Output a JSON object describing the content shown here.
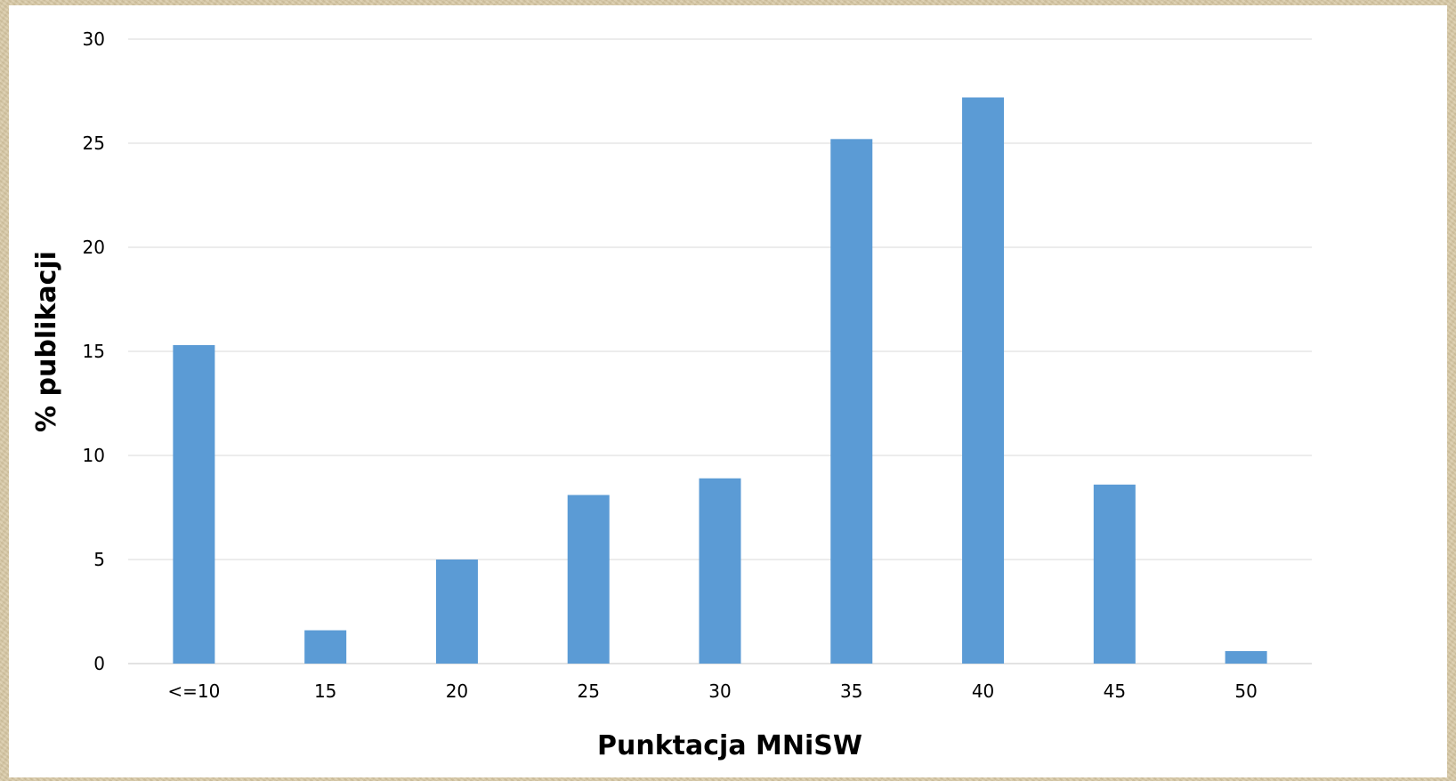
{
  "chart_data": {
    "type": "bar",
    "categories": [
      "<=10",
      "15",
      "20",
      "25",
      "30",
      "35",
      "40",
      "45",
      "50"
    ],
    "values": [
      15.3,
      1.6,
      5.0,
      8.1,
      8.9,
      25.2,
      27.2,
      8.6,
      0.6
    ],
    "xlabel": "Punktacja MNiSW",
    "ylabel": "% publikacji",
    "ylim": [
      0,
      30
    ],
    "yticks": [
      0,
      5,
      10,
      15,
      20,
      25,
      30
    ],
    "grid": true,
    "legend": "none",
    "bar_color": "#5b9bd5",
    "grid_color": "#d9d9d9"
  }
}
